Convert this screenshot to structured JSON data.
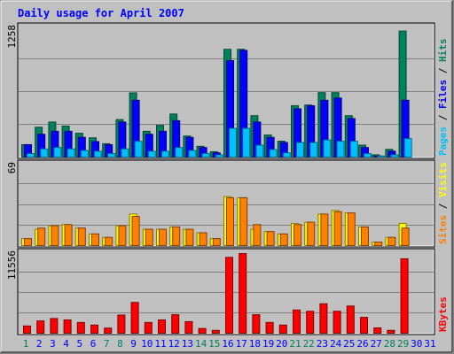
{
  "chart_data": {
    "type": "bar",
    "title": "Daily usage for April 2007",
    "colors": {
      "hits": "#00805c",
      "files": "#0000ff",
      "pages": "#00c0ff",
      "visits": "#ffff00",
      "sites": "#ff8000",
      "kbytes": "#ff0000",
      "background": "#c0c0c0",
      "title": "#0000ff",
      "weekend_label": "#00805c",
      "weekday_label": "#0000ff"
    },
    "categories": [
      "1",
      "2",
      "3",
      "4",
      "5",
      "6",
      "7",
      "8",
      "9",
      "10",
      "11",
      "12",
      "13",
      "14",
      "15",
      "16",
      "17",
      "18",
      "19",
      "20",
      "21",
      "22",
      "23",
      "24",
      "25",
      "26",
      "27",
      "28",
      "29",
      "30",
      "31"
    ],
    "weekend_days": [
      1,
      7,
      8,
      14,
      15,
      21,
      22,
      28,
      29
    ],
    "panels": [
      {
        "id": "hits-files-pages",
        "max_label": "1258",
        "ylim": [
          0,
          1258
        ],
        "legend": [
          "Pages",
          "Files",
          "Hits"
        ],
        "series": [
          {
            "name": "Hits",
            "key": "hits",
            "values": [
              121,
              291,
              341,
              302,
              232,
              187,
              130,
              365,
              625,
              251,
              309,
              419,
              205,
              105,
              52,
              1049,
              1049,
              403,
              215,
              155,
              500,
              507,
              627,
              627,
              403,
              116,
              22,
              75,
              1227
            ]
          },
          {
            "name": "Files",
            "key": "files",
            "values": [
              121,
              222,
              251,
              251,
              192,
              151,
              121,
              341,
              553,
              222,
              251,
              354,
              192,
              93,
              41,
              939,
              1039,
              341,
              192,
              142,
              470,
              500,
              553,
              575,
              375,
              93,
              11,
              57,
              553
            ]
          },
          {
            "name": "Pages",
            "key": "pages",
            "values": [
              34,
              80,
              93,
              80,
              64,
              57,
              34,
              80,
              154,
              57,
              57,
              93,
              64,
              34,
              22,
              280,
              280,
              116,
              73,
              41,
              142,
              142,
              167,
              154,
              154,
              34,
              11,
              22,
              180
            ]
          }
        ]
      },
      {
        "id": "sites-visits",
        "max_label": "69",
        "ylim": [
          0,
          69
        ],
        "legend": [
          "Sites",
          "Visits"
        ],
        "series": [
          {
            "name": "Visits",
            "key": "visits",
            "values": [
              6,
              14,
              17,
              18,
              15,
              10,
              7,
              17,
              27,
              14,
              14,
              16,
              14,
              11,
              6,
              42,
              41,
              14,
              12,
              10,
              19,
              20,
              27,
              30,
              28,
              16,
              3,
              7,
              19
            ]
          },
          {
            "name": "Sites",
            "key": "sites",
            "values": [
              6,
              15,
              17,
              18,
              15,
              10,
              7,
              17,
              25,
              14,
              14,
              16,
              14,
              11,
              6,
              41,
              41,
              18,
              12,
              10,
              18,
              20,
              27,
              29,
              28,
              16,
              3,
              7,
              15
            ]
          }
        ]
      },
      {
        "id": "kbytes",
        "max_label": "11556",
        "ylim": [
          0,
          11556
        ],
        "legend": [
          "KBytes"
        ],
        "series": [
          {
            "name": "KBytes",
            "key": "kbytes",
            "values": [
              1050,
              1782,
              2128,
              1928,
              1560,
              1180,
              740,
              2630,
              4460,
              1560,
              1930,
              2680,
              1680,
              680,
              410,
              11000,
              11556,
              2680,
              1560,
              1180,
              3370,
              3180,
              4270,
              3180,
              3940,
              2300,
              770,
              410,
              10800
            ]
          }
        ]
      }
    ]
  }
}
